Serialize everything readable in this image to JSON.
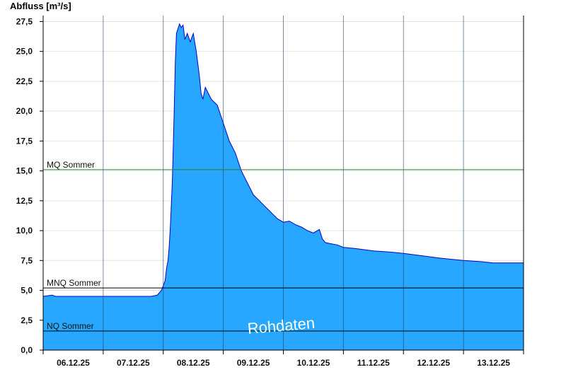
{
  "chart_data": {
    "type": "area",
    "ylabel": "Abfluss [m³/s]",
    "watermark": "Rohdaten",
    "ylim": [
      0,
      28
    ],
    "xlim": [
      0,
      8
    ],
    "yticks": [
      "0,0",
      "2,5",
      "5,0",
      "7,5",
      "10,0",
      "12,5",
      "15,0",
      "17,5",
      "20,0",
      "22,5",
      "25,0",
      "27,5"
    ],
    "ytick_values": [
      0,
      2.5,
      5,
      7.5,
      10,
      12.5,
      15,
      17.5,
      20,
      22.5,
      25,
      27.5
    ],
    "xticks": [
      "06.12.25",
      "07.12.25",
      "08.12.25",
      "09.12.25",
      "10.12.25",
      "11.12.25",
      "12.12.25",
      "13.12.25"
    ],
    "grid": true,
    "fill_color": "#27a7ff",
    "line_color": "#0000cc",
    "reference_lines": [
      {
        "label": "MQ Sommer",
        "value": 15.1,
        "color": "#2e7d32"
      },
      {
        "label": "MNQ Sommer",
        "value": 5.2,
        "color": "#000000"
      },
      {
        "label": "NQ Sommer",
        "value": 1.6,
        "color": "#000000"
      }
    ],
    "series": [
      {
        "x": [
          0,
          0.15,
          0.2,
          0.5,
          1.0,
          1.5,
          1.8,
          1.9,
          1.97,
          2.03,
          2.06,
          2.08,
          2.1,
          2.12,
          2.15,
          2.18,
          2.2,
          2.22,
          2.27,
          2.3,
          2.33,
          2.36,
          2.4,
          2.45,
          2.5,
          2.55,
          2.6,
          2.63,
          2.66,
          2.7,
          2.8,
          2.9,
          3.0,
          3.1,
          3.2,
          3.3,
          3.4,
          3.5,
          3.6,
          3.7,
          3.8,
          3.9,
          4.0,
          4.1,
          4.2,
          4.3,
          4.4,
          4.5,
          4.6,
          4.65,
          4.7,
          4.8,
          4.9,
          5.0,
          5.2,
          5.5,
          5.8,
          6.0,
          6.3,
          6.6,
          6.8,
          7.0,
          7.3,
          7.5,
          7.7,
          8.0
        ],
        "y": [
          4.5,
          4.6,
          4.5,
          4.5,
          4.5,
          4.5,
          4.5,
          4.6,
          5.0,
          5.8,
          7.0,
          7.5,
          8.7,
          10.5,
          14.0,
          19.5,
          24.0,
          26.5,
          27.3,
          27.0,
          27.2,
          26.0,
          26.5,
          25.8,
          26.5,
          25.0,
          23.0,
          21.5,
          21.0,
          22.0,
          21.0,
          20.5,
          19.0,
          17.5,
          16.5,
          15.0,
          14.0,
          13.0,
          12.5,
          12.0,
          11.5,
          11.0,
          10.7,
          10.8,
          10.5,
          10.3,
          10.0,
          9.8,
          10.1,
          9.3,
          9.0,
          8.9,
          8.8,
          8.6,
          8.5,
          8.3,
          8.2,
          8.1,
          7.9,
          7.7,
          7.6,
          7.5,
          7.4,
          7.3,
          7.3,
          7.3
        ]
      }
    ]
  }
}
